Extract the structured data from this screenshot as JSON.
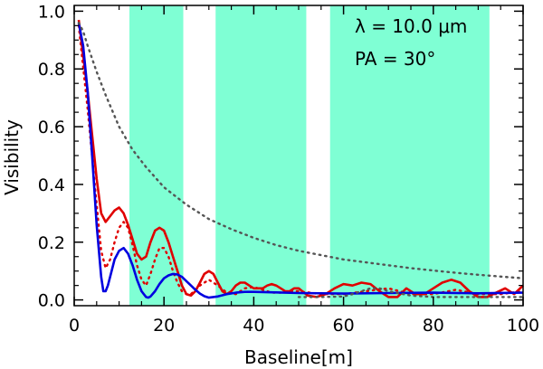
{
  "chart_data": {
    "type": "line",
    "xlabel": "Baseline[m]",
    "ylabel": "Visibility",
    "xlim": [
      0,
      100
    ],
    "ylim": [
      -0.02,
      1.02
    ],
    "xticks": [
      {
        "value": 0,
        "label": "0"
      },
      {
        "value": 20,
        "label": "20"
      },
      {
        "value": 40,
        "label": "40"
      },
      {
        "value": 60,
        "label": "60"
      },
      {
        "value": 80,
        "label": "80"
      },
      {
        "value": 100,
        "label": "100"
      }
    ],
    "yticks": [
      {
        "value": 0.0,
        "label": "0.0"
      },
      {
        "value": 0.2,
        "label": "0.2"
      },
      {
        "value": 0.4,
        "label": "0.4"
      },
      {
        "value": 0.6,
        "label": "0.6"
      },
      {
        "value": 0.8,
        "label": "0.8"
      },
      {
        "value": 1.0,
        "label": "1.0"
      }
    ],
    "shaded_bands": [
      [
        12.3,
        24.3
      ],
      [
        31.5,
        51.7
      ],
      [
        57.0,
        92.5
      ]
    ],
    "band_color": "#7fffd4",
    "annotations": {
      "lambda_text": "λ  =  10.0  μm",
      "pa_text": "PA  =    30°"
    },
    "series": [
      {
        "name": "red-solid",
        "color": "#e00000",
        "dash": "solid",
        "x": [
          1,
          3,
          5,
          6,
          7,
          8,
          9,
          10,
          11,
          12,
          13,
          14,
          15,
          16,
          17,
          18,
          19,
          20,
          21,
          22,
          23,
          24,
          25,
          26,
          27,
          28,
          29,
          30,
          31,
          32,
          33,
          34,
          35,
          36,
          37,
          38,
          39,
          40,
          41,
          42,
          43,
          44,
          45,
          46,
          47,
          48,
          49,
          50,
          52,
          54,
          56,
          58,
          60,
          62,
          64,
          66,
          68,
          70,
          72,
          74,
          76,
          78,
          80,
          82,
          84,
          86,
          88,
          90,
          92,
          94,
          96,
          98,
          100
        ],
        "y": [
          0.97,
          0.72,
          0.42,
          0.3,
          0.27,
          0.29,
          0.31,
          0.32,
          0.3,
          0.26,
          0.21,
          0.16,
          0.14,
          0.15,
          0.2,
          0.24,
          0.25,
          0.24,
          0.2,
          0.15,
          0.1,
          0.05,
          0.02,
          0.015,
          0.03,
          0.06,
          0.09,
          0.1,
          0.09,
          0.06,
          0.03,
          0.02,
          0.03,
          0.05,
          0.06,
          0.06,
          0.05,
          0.04,
          0.04,
          0.04,
          0.05,
          0.055,
          0.05,
          0.04,
          0.03,
          0.03,
          0.04,
          0.04,
          0.015,
          0.01,
          0.02,
          0.04,
          0.055,
          0.05,
          0.06,
          0.055,
          0.03,
          0.01,
          0.01,
          0.04,
          0.02,
          0.02,
          0.04,
          0.06,
          0.07,
          0.06,
          0.03,
          0.01,
          0.01,
          0.025,
          0.04,
          0.02,
          0.05
        ]
      },
      {
        "name": "red-dotted",
        "color": "#e00000",
        "dash": "dotted",
        "x": [
          1,
          3,
          5,
          6,
          7,
          8,
          9,
          10,
          11,
          12,
          13,
          14,
          15,
          16,
          17,
          18,
          19,
          20,
          21,
          22,
          23,
          24,
          25,
          26,
          28,
          30,
          32,
          34,
          36,
          38,
          40,
          42,
          44,
          46,
          48,
          50,
          55,
          60,
          65,
          70,
          75,
          80,
          85,
          90,
          95,
          100
        ],
        "y": [
          0.95,
          0.66,
          0.33,
          0.17,
          0.11,
          0.14,
          0.2,
          0.25,
          0.27,
          0.25,
          0.19,
          0.12,
          0.07,
          0.05,
          0.09,
          0.14,
          0.18,
          0.18,
          0.15,
          0.1,
          0.06,
          0.03,
          0.02,
          0.02,
          0.05,
          0.07,
          0.05,
          0.025,
          0.02,
          0.04,
          0.045,
          0.035,
          0.025,
          0.025,
          0.03,
          0.03,
          0.02,
          0.02,
          0.03,
          0.04,
          0.02,
          0.02,
          0.035,
          0.02,
          0.02,
          0.03
        ]
      },
      {
        "name": "blue-solid",
        "color": "#0000e0",
        "dash": "solid",
        "x": [
          1,
          2,
          3,
          4,
          5,
          6,
          6.5,
          7,
          7.5,
          8,
          9,
          10,
          11,
          12,
          13,
          14,
          15,
          16,
          16.5,
          17,
          18,
          19,
          20,
          21,
          22,
          23,
          24,
          25,
          26,
          27,
          28,
          29,
          30,
          32,
          34,
          36,
          38,
          40,
          45,
          50,
          60,
          70,
          80,
          90,
          100
        ],
        "y": [
          0.96,
          0.88,
          0.72,
          0.5,
          0.26,
          0.08,
          0.03,
          0.03,
          0.05,
          0.08,
          0.14,
          0.17,
          0.18,
          0.16,
          0.12,
          0.07,
          0.03,
          0.01,
          0.008,
          0.012,
          0.03,
          0.055,
          0.075,
          0.085,
          0.09,
          0.088,
          0.08,
          0.065,
          0.05,
          0.035,
          0.022,
          0.013,
          0.008,
          0.012,
          0.02,
          0.025,
          0.028,
          0.028,
          0.026,
          0.024,
          0.022,
          0.024,
          0.025,
          0.023,
          0.025
        ]
      },
      {
        "name": "gray-dotted",
        "color": "#555555",
        "dash": "dotted",
        "x": [
          1,
          2,
          3,
          5,
          7,
          10,
          13,
          16,
          20,
          25,
          30,
          35,
          40,
          45,
          50,
          55,
          60,
          65,
          70,
          75,
          80,
          85,
          90,
          95,
          100
        ],
        "y": [
          0.96,
          0.93,
          0.88,
          0.79,
          0.71,
          0.6,
          0.52,
          0.46,
          0.39,
          0.33,
          0.28,
          0.245,
          0.215,
          0.19,
          0.17,
          0.155,
          0.14,
          0.13,
          0.12,
          0.11,
          0.102,
          0.094,
          0.087,
          0.081,
          0.075
        ]
      },
      {
        "name": "gray-dotted-low",
        "color": "#555555",
        "dash": "dotted",
        "x": [
          50,
          55,
          60,
          62,
          64,
          66,
          68,
          70,
          75,
          80,
          85,
          90,
          95,
          100
        ],
        "y": [
          0.01,
          0.01,
          0.012,
          0.02,
          0.03,
          0.04,
          0.04,
          0.03,
          0.015,
          0.01,
          0.01,
          0.01,
          0.01,
          0.01
        ]
      }
    ]
  }
}
